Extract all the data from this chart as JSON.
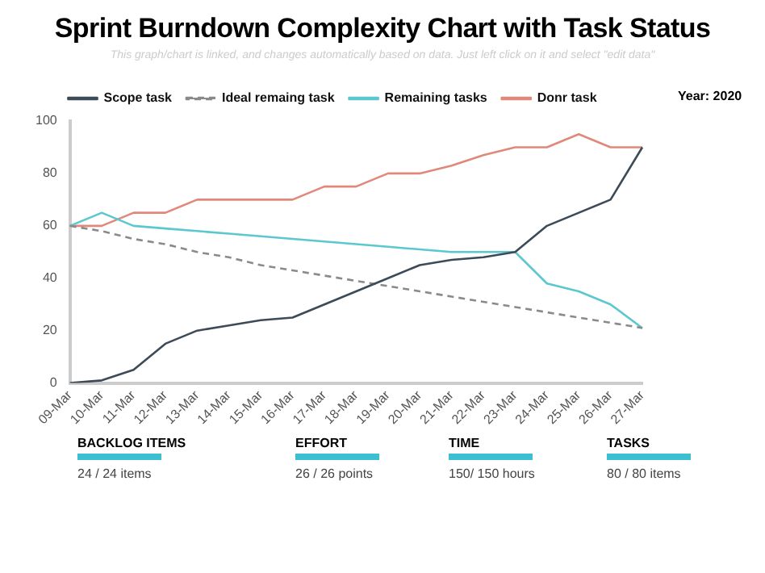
{
  "chart_data": {
    "type": "line",
    "title": "Sprint Burndown Complexity Chart with Task Status",
    "subtitle": "This graph/chart is linked, and changes automatically based on data. Just left click on it and select \"edit data\"",
    "categories": [
      "09-Mar",
      "10-Mar",
      "11-Mar",
      "12-Mar",
      "13-Mar",
      "14-Mar",
      "15-Mar",
      "16-Mar",
      "17-Mar",
      "18-Mar",
      "19-Mar",
      "20-Mar",
      "21-Mar",
      "22-Mar",
      "23-Mar",
      "24-Mar",
      "25-Mar",
      "26-Mar",
      "27-Mar"
    ],
    "series": [
      {
        "name": "Scope task",
        "color": "#3d4a57",
        "values": [
          0,
          1,
          5,
          15,
          20,
          22,
          24,
          25,
          30,
          35,
          40,
          45,
          47,
          48,
          50,
          60,
          65,
          70,
          90
        ]
      },
      {
        "name": "Ideal remaing task",
        "color": "#8a8a8a",
        "line_style": "dashed",
        "values": [
          60,
          58,
          55,
          53,
          50,
          48,
          45,
          43,
          41,
          39,
          37,
          35,
          33,
          31,
          29,
          27,
          25,
          23,
          21
        ]
      },
      {
        "name": "Remaining tasks",
        "color": "#5bc8d0",
        "values": [
          60,
          65,
          60,
          59,
          58,
          57,
          56,
          55,
          54,
          53,
          52,
          51,
          50,
          50,
          50,
          38,
          35,
          30,
          21
        ]
      },
      {
        "name": "Donr task",
        "color": "#e0897a",
        "values": [
          60,
          60,
          65,
          65,
          70,
          70,
          70,
          70,
          75,
          75,
          80,
          80,
          83,
          87,
          90,
          90,
          95,
          90,
          90
        ]
      }
    ],
    "ylim": [
      0,
      100
    ],
    "yticks": [
      0,
      20,
      40,
      60,
      80,
      100
    ],
    "grid": false,
    "legend": "top",
    "marker": "none",
    "annotations": [
      "Year: 2020",
      "BACKLOG ITEMS",
      "24 / 24  items",
      "EFFORT",
      "26 / 26  points",
      "TIME",
      "150/ 150  hours",
      "TASKS",
      "80 / 80  items"
    ]
  }
}
